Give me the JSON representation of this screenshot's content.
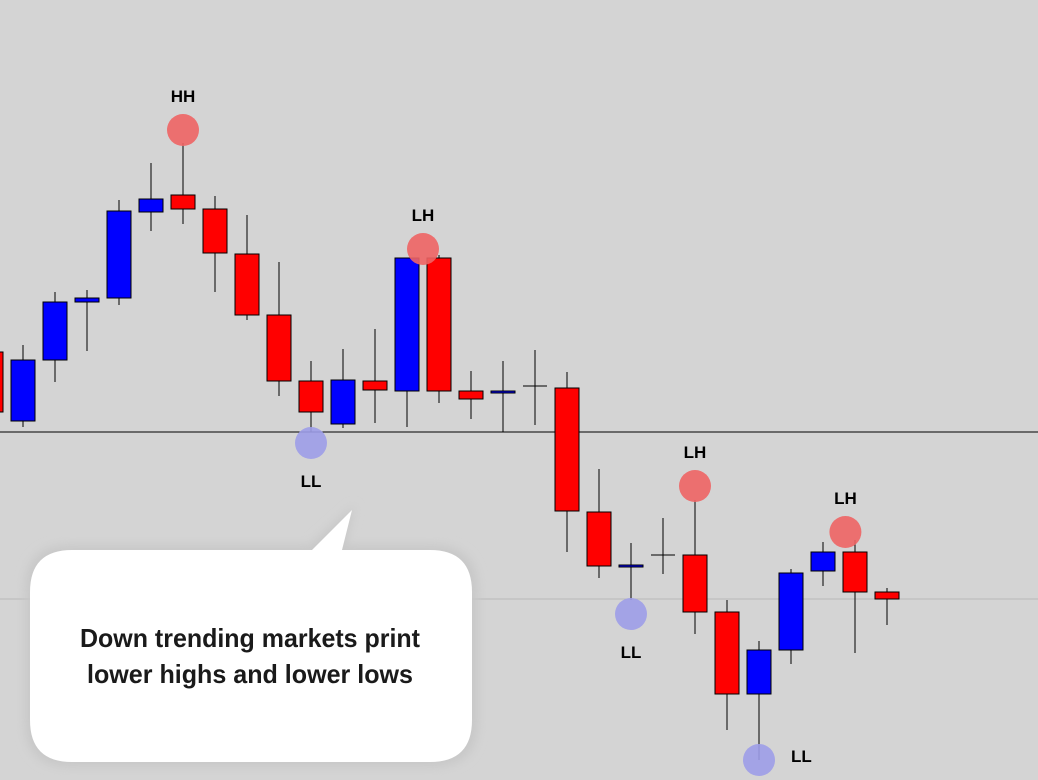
{
  "chart_data": {
    "type": "candlestick",
    "ylim": [
      0,
      780
    ],
    "up_color": "#0000ff",
    "down_color": "#ff0000",
    "flat_color": "#000000",
    "open": [
      428,
      359,
      420,
      478,
      482,
      568,
      585,
      571,
      526,
      465,
      399,
      356,
      399,
      389,
      522,
      389,
      387,
      394,
      392,
      268,
      214,
      225,
      225,
      168,
      86,
      130,
      209,
      228,
      188
    ],
    "high": [
      432,
      435,
      488,
      490,
      580,
      617,
      637,
      584,
      565,
      518,
      419,
      431,
      451,
      522,
      525,
      409,
      419,
      430,
      408,
      311,
      237,
      262,
      280,
      180,
      139,
      211,
      238,
      240,
      192
    ],
    "low": [
      365,
      353,
      398,
      429,
      475,
      549,
      556,
      488,
      460,
      384,
      348,
      352,
      357,
      353,
      377,
      361,
      348,
      355,
      228,
      202,
      180,
      206,
      146,
      50,
      20,
      116,
      194,
      127,
      155
    ],
    "close": [
      368,
      420,
      478,
      482,
      569,
      581,
      571,
      527,
      465,
      399,
      368,
      400,
      390,
      522,
      389,
      381,
      389,
      394,
      269,
      214,
      215,
      225,
      168,
      86,
      130,
      207,
      228,
      188,
      181
    ],
    "hlines": [
      {
        "value": 348,
        "color": "#000000"
      },
      {
        "value": 181,
        "color": "#b8b8b8"
      }
    ],
    "annotations": [
      {
        "label": "HH",
        "x": 6,
        "y": 650,
        "kind": "high"
      },
      {
        "label": "LH",
        "x": 13.5,
        "y": 531,
        "kind": "high"
      },
      {
        "label": "LL",
        "x": 10,
        "y": 337,
        "kind": "low"
      },
      {
        "label": "LH",
        "x": 22,
        "y": 294,
        "kind": "high"
      },
      {
        "label": "LL",
        "x": 20,
        "y": 166,
        "kind": "low"
      },
      {
        "label": "LH",
        "x": 26.7,
        "y": 248,
        "kind": "high"
      },
      {
        "label": "LL",
        "x": 24,
        "y": 20,
        "kind": "low"
      }
    ],
    "high_marker_color": "#ee6464",
    "low_marker_color": "#9d9de8",
    "callout": [
      "Down trending markets print",
      "lower highs and lower lows"
    ]
  }
}
